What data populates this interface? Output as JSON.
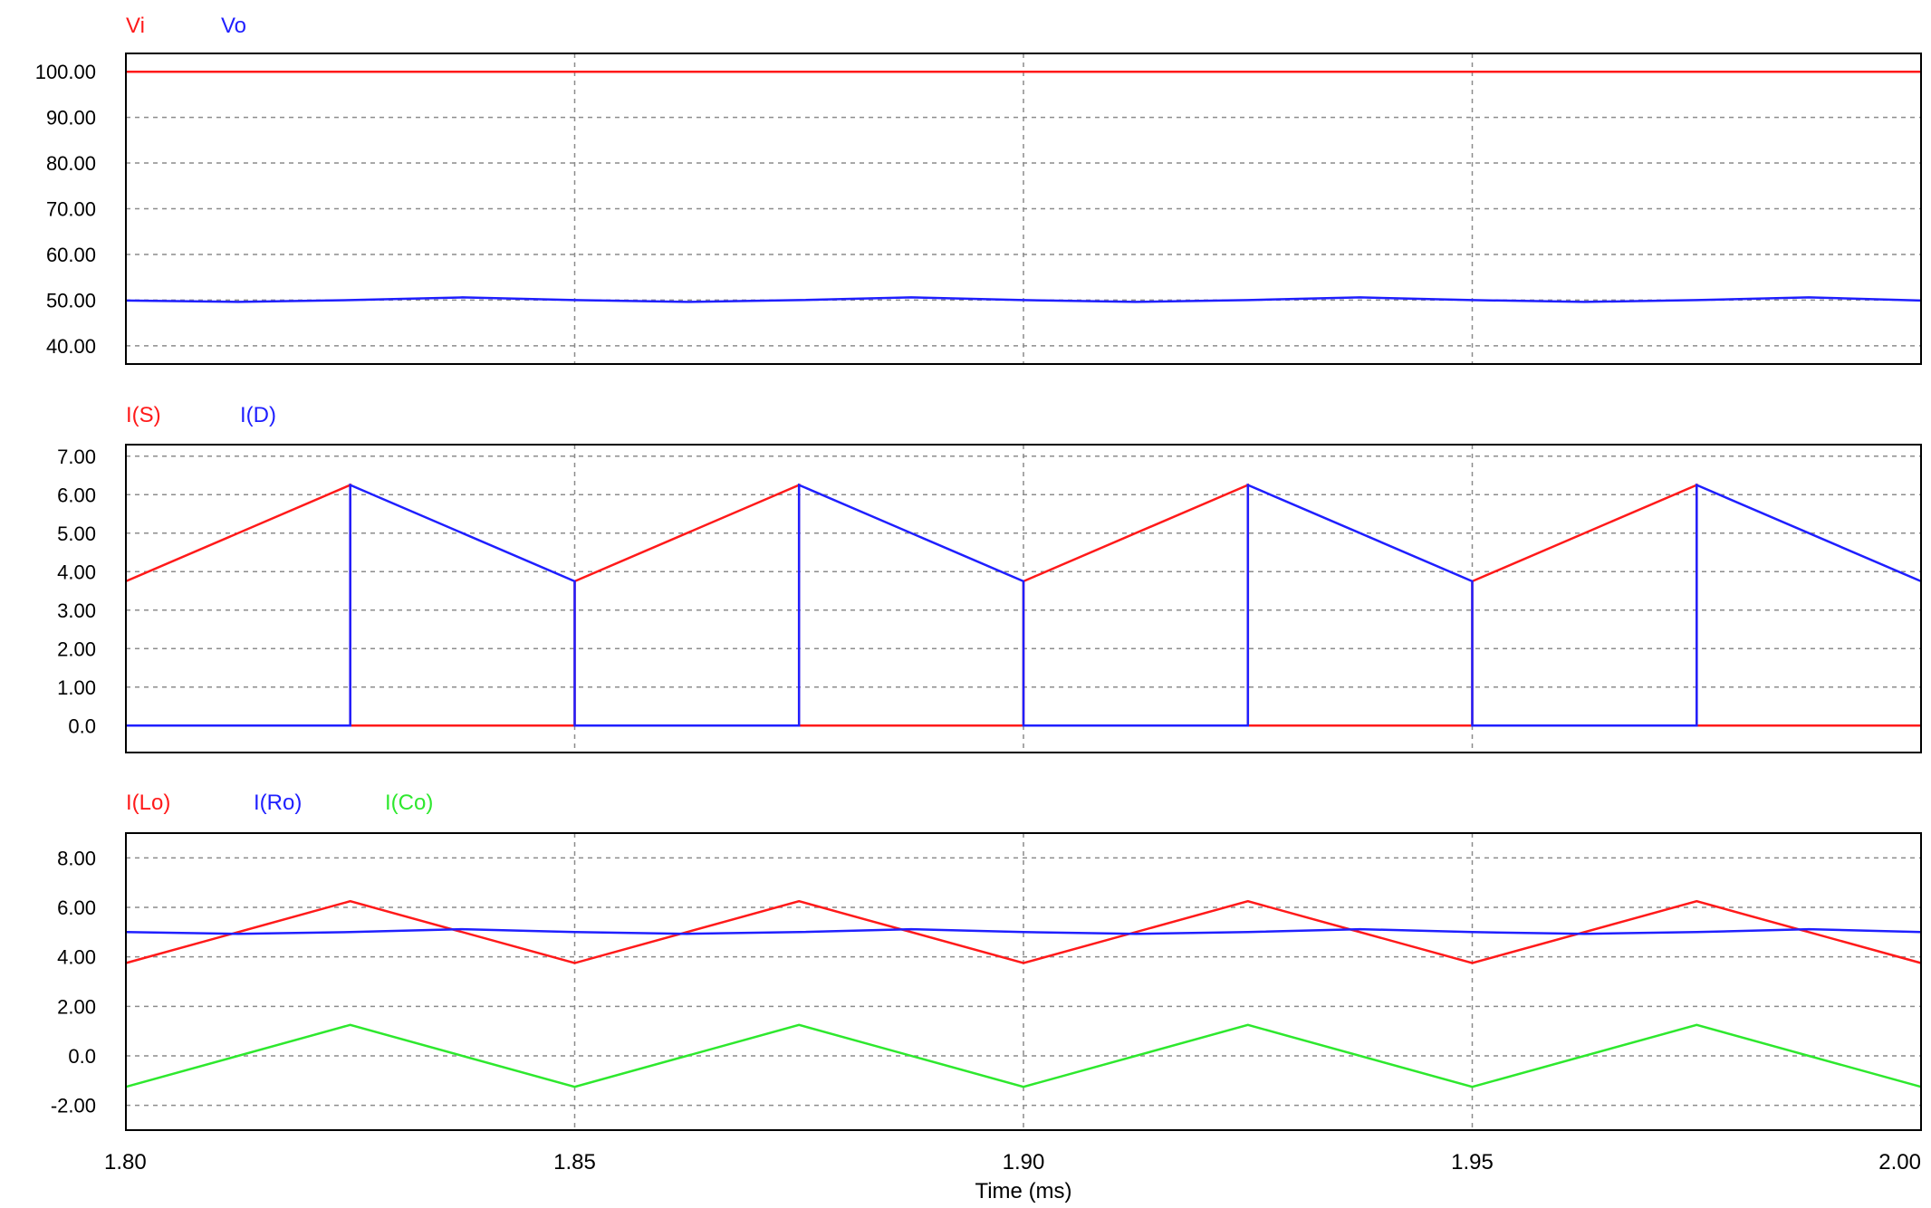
{
  "colors": {
    "red": "#ff1a1a",
    "blue": "#1f1fff",
    "green": "#2ee82e",
    "grid": "#8c8c8c",
    "frame": "#000000",
    "background": "#ffffff"
  },
  "x_axis": {
    "label": "Time (ms)",
    "ticks": [
      1.8,
      1.85,
      1.9,
      1.95,
      2.0
    ],
    "tick_labels": [
      "1.80",
      "1.85",
      "1.90",
      "1.95",
      "2.00"
    ],
    "range": [
      1.8,
      2.0
    ]
  },
  "chart_data": [
    {
      "type": "line",
      "grid": true,
      "ylim": [
        36,
        104
      ],
      "y_ticks": [
        40,
        50,
        60,
        70,
        80,
        90,
        100
      ],
      "y_tick_labels": [
        "40.00",
        "50.00",
        "60.00",
        "70.00",
        "80.00",
        "90.00",
        "100.00"
      ],
      "series": [
        {
          "name": "Vi",
          "color": "red",
          "x": [
            1.8,
            2.0
          ],
          "y": [
            100,
            100
          ]
        },
        {
          "name": "Vo",
          "color": "blue",
          "x": [
            1.8,
            1.8125,
            1.825,
            1.8375,
            1.85,
            1.8625,
            1.875,
            1.8875,
            1.9,
            1.9125,
            1.925,
            1.9375,
            1.95,
            1.9625,
            1.975,
            1.9875,
            2.0
          ],
          "y": [
            49.9,
            49.6,
            50.0,
            50.6,
            50.0,
            49.6,
            50.0,
            50.6,
            50.0,
            49.6,
            50.0,
            50.6,
            50.0,
            49.6,
            50.0,
            50.6,
            49.9
          ]
        }
      ]
    },
    {
      "type": "line",
      "grid": true,
      "ylim": [
        -0.7,
        7.3
      ],
      "y_ticks": [
        0,
        1,
        2,
        3,
        4,
        5,
        6,
        7
      ],
      "y_tick_labels": [
        "0.0",
        "1.00",
        "2.00",
        "3.00",
        "4.00",
        "5.00",
        "6.00",
        "7.00"
      ],
      "series": [
        {
          "name": "I(S)",
          "color": "red",
          "x": [
            1.8,
            1.825,
            1.825,
            1.85,
            1.85,
            1.875,
            1.875,
            1.9,
            1.9,
            1.925,
            1.925,
            1.95,
            1.95,
            1.975,
            1.975,
            2.0
          ],
          "y": [
            3.75,
            6.25,
            0,
            0,
            3.75,
            6.25,
            0,
            0,
            3.75,
            6.25,
            0,
            0,
            3.75,
            6.25,
            0,
            0
          ]
        },
        {
          "name": "I(D)",
          "color": "blue",
          "x": [
            1.8,
            1.825,
            1.825,
            1.85,
            1.85,
            1.875,
            1.875,
            1.9,
            1.9,
            1.925,
            1.925,
            1.95,
            1.95,
            1.975,
            1.975,
            2.0
          ],
          "y": [
            0,
            0,
            6.25,
            3.75,
            0,
            0,
            6.25,
            3.75,
            0,
            0,
            6.25,
            3.75,
            0,
            0,
            6.25,
            3.75
          ]
        }
      ]
    },
    {
      "type": "line",
      "grid": true,
      "ylim": [
        -3.0,
        9.0
      ],
      "y_ticks": [
        -2,
        0,
        2,
        4,
        6,
        8
      ],
      "y_tick_labels": [
        "-2.00",
        "0.0",
        "2.00",
        "4.00",
        "6.00",
        "8.00"
      ],
      "series": [
        {
          "name": "I(Lo)",
          "color": "red",
          "x": [
            1.8,
            1.825,
            1.85,
            1.875,
            1.9,
            1.925,
            1.95,
            1.975,
            2.0
          ],
          "y": [
            3.75,
            6.25,
            3.75,
            6.25,
            3.75,
            6.25,
            3.75,
            6.25,
            3.75
          ]
        },
        {
          "name": "I(Ro)",
          "color": "blue",
          "x": [
            1.8,
            1.8125,
            1.825,
            1.8375,
            1.85,
            1.8625,
            1.875,
            1.8875,
            1.9,
            1.9125,
            1.925,
            1.9375,
            1.95,
            1.9625,
            1.975,
            1.9875,
            2.0
          ],
          "y": [
            5.0,
            4.93,
            5.0,
            5.12,
            5.0,
            4.93,
            5.0,
            5.12,
            5.0,
            4.93,
            5.0,
            5.12,
            5.0,
            4.93,
            5.0,
            5.12,
            5.0
          ]
        },
        {
          "name": "I(Co)",
          "color": "green",
          "x": [
            1.8,
            1.825,
            1.85,
            1.875,
            1.9,
            1.925,
            1.95,
            1.975,
            2.0
          ],
          "y": [
            -1.25,
            1.25,
            -1.25,
            1.25,
            -1.25,
            1.25,
            -1.25,
            1.25,
            -1.25
          ]
        }
      ]
    }
  ]
}
